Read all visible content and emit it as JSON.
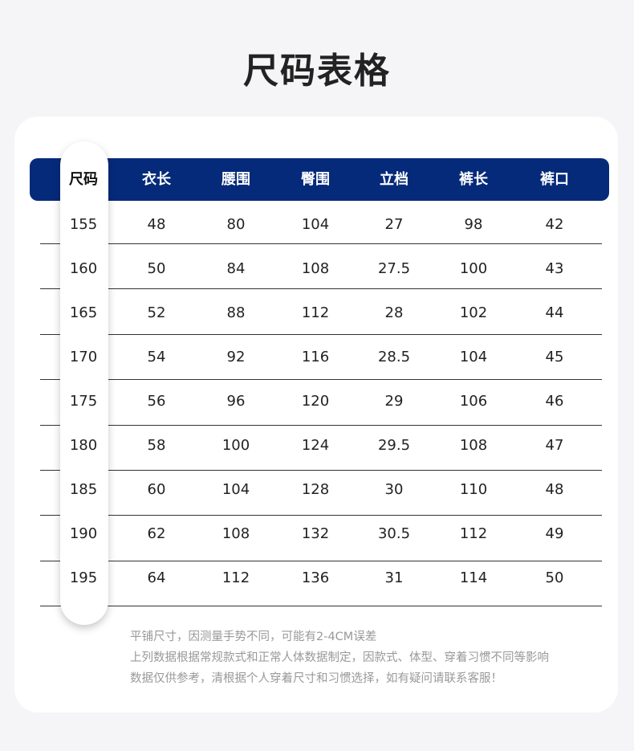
{
  "title": "尺码表格",
  "colors": {
    "header_bg": "#062a7a",
    "header_text": "#ffffff",
    "text": "#222222"
  },
  "table": {
    "headers": [
      "尺码",
      "衣长",
      "腰围",
      "臀围",
      "立档",
      "裤长",
      "裤口"
    ],
    "rows": [
      [
        "155",
        "48",
        "80",
        "104",
        "27",
        "98",
        "42"
      ],
      [
        "160",
        "50",
        "84",
        "108",
        "27.5",
        "100",
        "43"
      ],
      [
        "165",
        "52",
        "88",
        "112",
        "28",
        "102",
        "44"
      ],
      [
        "170",
        "54",
        "92",
        "116",
        "28.5",
        "104",
        "45"
      ],
      [
        "175",
        "56",
        "96",
        "120",
        "29",
        "106",
        "46"
      ],
      [
        "180",
        "58",
        "100",
        "124",
        "29.5",
        "108",
        "47"
      ],
      [
        "185",
        "60",
        "104",
        "128",
        "30",
        "110",
        "48"
      ],
      [
        "190",
        "62",
        "108",
        "132",
        "30.5",
        "112",
        "49"
      ],
      [
        "195",
        "64",
        "112",
        "136",
        "31",
        "114",
        "50"
      ]
    ]
  },
  "notes": [
    "平铺尺寸，因测量手势不同，可能有2-4CM误差",
    "上列数据根据常规款式和正常人体数据制定，因款式、体型、穿着习惯不同等影响",
    "数据仅供参考，清根据个人穿着尺寸和习惯选择，如有疑问请联系客服！"
  ]
}
